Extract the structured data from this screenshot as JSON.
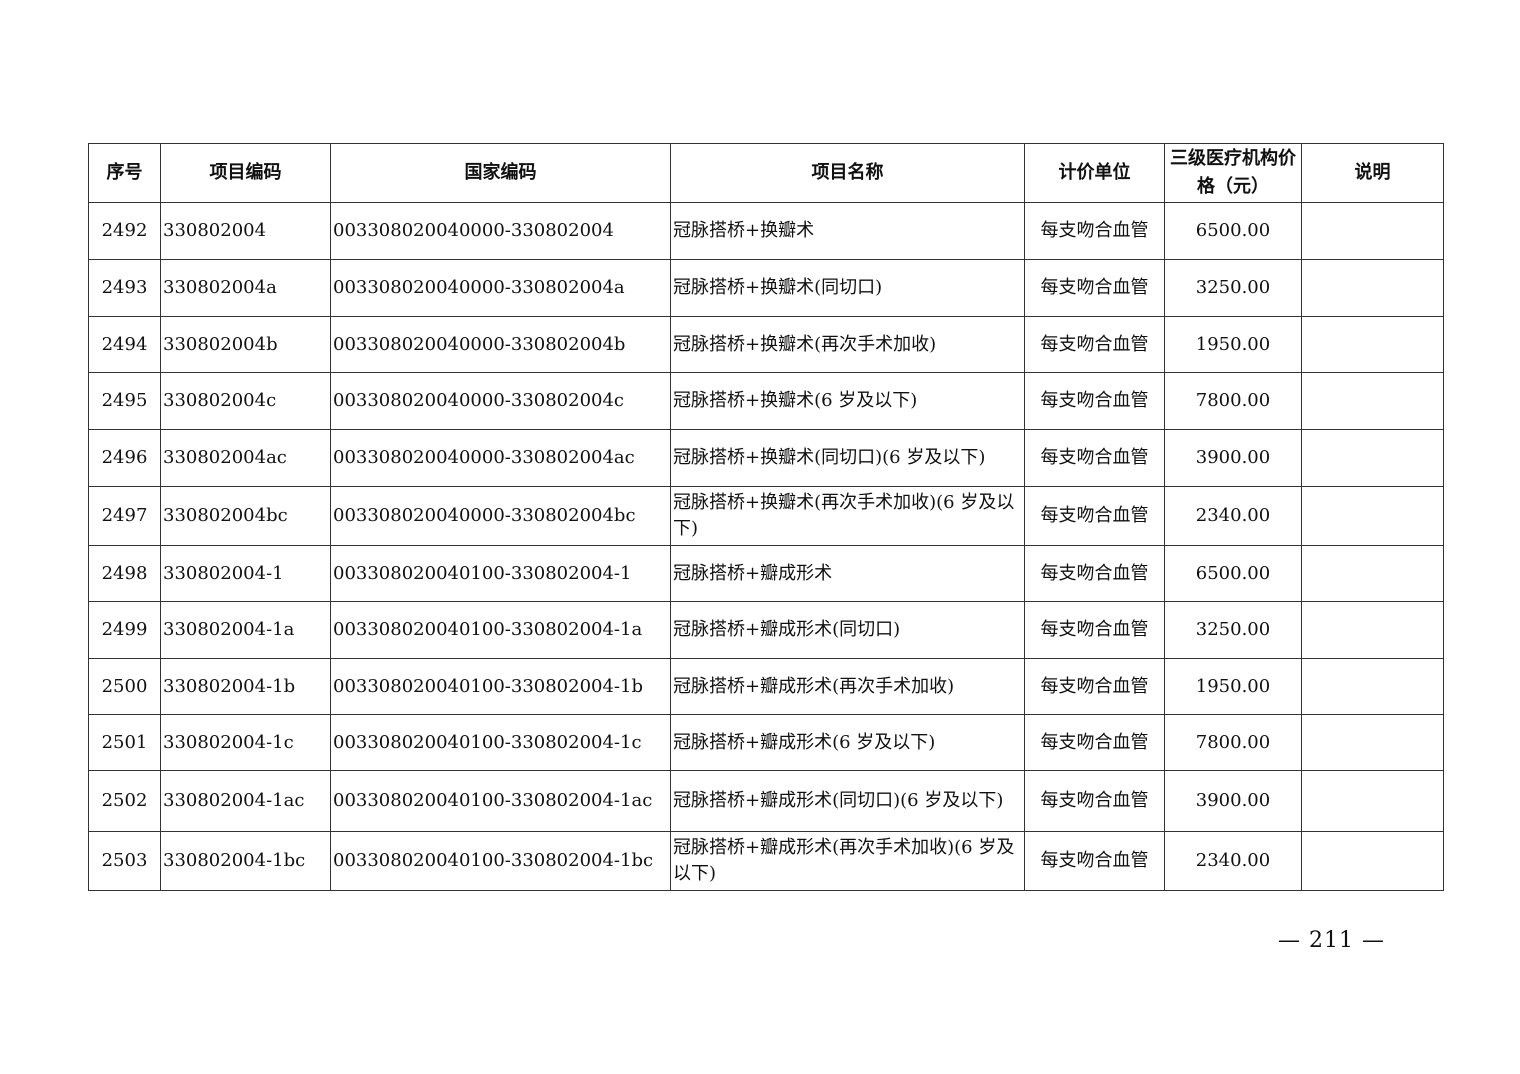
{
  "table": {
    "headers": [
      "序号",
      "项目编码",
      "国家编码",
      "项目名称",
      "计价单位",
      "三级医疗机构价格（元）",
      "说明"
    ],
    "rows": [
      [
        "2492",
        "330802004",
        "003308020040000-330802004",
        "冠脉搭桥+换瓣术",
        "每支吻合血管",
        "6500.00",
        ""
      ],
      [
        "2493",
        "330802004a",
        "003308020040000-330802004a",
        "冠脉搭桥+换瓣术(同切口)",
        "每支吻合血管",
        "3250.00",
        ""
      ],
      [
        "2494",
        "330802004b",
        "003308020040000-330802004b",
        "冠脉搭桥+换瓣术(再次手术加收)",
        "每支吻合血管",
        "1950.00",
        ""
      ],
      [
        "2495",
        "330802004c",
        "003308020040000-330802004c",
        "冠脉搭桥+换瓣术(6 岁及以下)",
        "每支吻合血管",
        "7800.00",
        ""
      ],
      [
        "2496",
        "330802004ac",
        "003308020040000-330802004ac",
        "冠脉搭桥+换瓣术(同切口)(6 岁及以下)",
        "每支吻合血管",
        "3900.00",
        ""
      ],
      [
        "2497",
        "330802004bc",
        "003308020040000-330802004bc",
        "冠脉搭桥+换瓣术(再次手术加收)(6 岁及以下)",
        "每支吻合血管",
        "2340.00",
        ""
      ],
      [
        "2498",
        "330802004-1",
        "003308020040100-330802004-1",
        "冠脉搭桥+瓣成形术",
        "每支吻合血管",
        "6500.00",
        ""
      ],
      [
        "2499",
        "330802004-1a",
        "003308020040100-330802004-1a",
        "冠脉搭桥+瓣成形术(同切口)",
        "每支吻合血管",
        "3250.00",
        ""
      ],
      [
        "2500",
        "330802004-1b",
        "003308020040100-330802004-1b",
        "冠脉搭桥+瓣成形术(再次手术加收)",
        "每支吻合血管",
        "1950.00",
        ""
      ],
      [
        "2501",
        "330802004-1c",
        "003308020040100-330802004-1c",
        "冠脉搭桥+瓣成形术(6 岁及以下)",
        "每支吻合血管",
        "7800.00",
        ""
      ],
      [
        "2502",
        "330802004-1ac",
        "003308020040100-330802004-1ac",
        "冠脉搭桥+瓣成形术(同切口)(6 岁及以下)",
        "每支吻合血管",
        "3900.00",
        ""
      ],
      [
        "2503",
        "330802004-1bc",
        "003308020040100-330802004-1bc",
        "冠脉搭桥+瓣成形术(再次手术加收)(6 岁及以下)",
        "每支吻合血管",
        "2340.00",
        ""
      ]
    ]
  },
  "page_number": "— 211 —"
}
